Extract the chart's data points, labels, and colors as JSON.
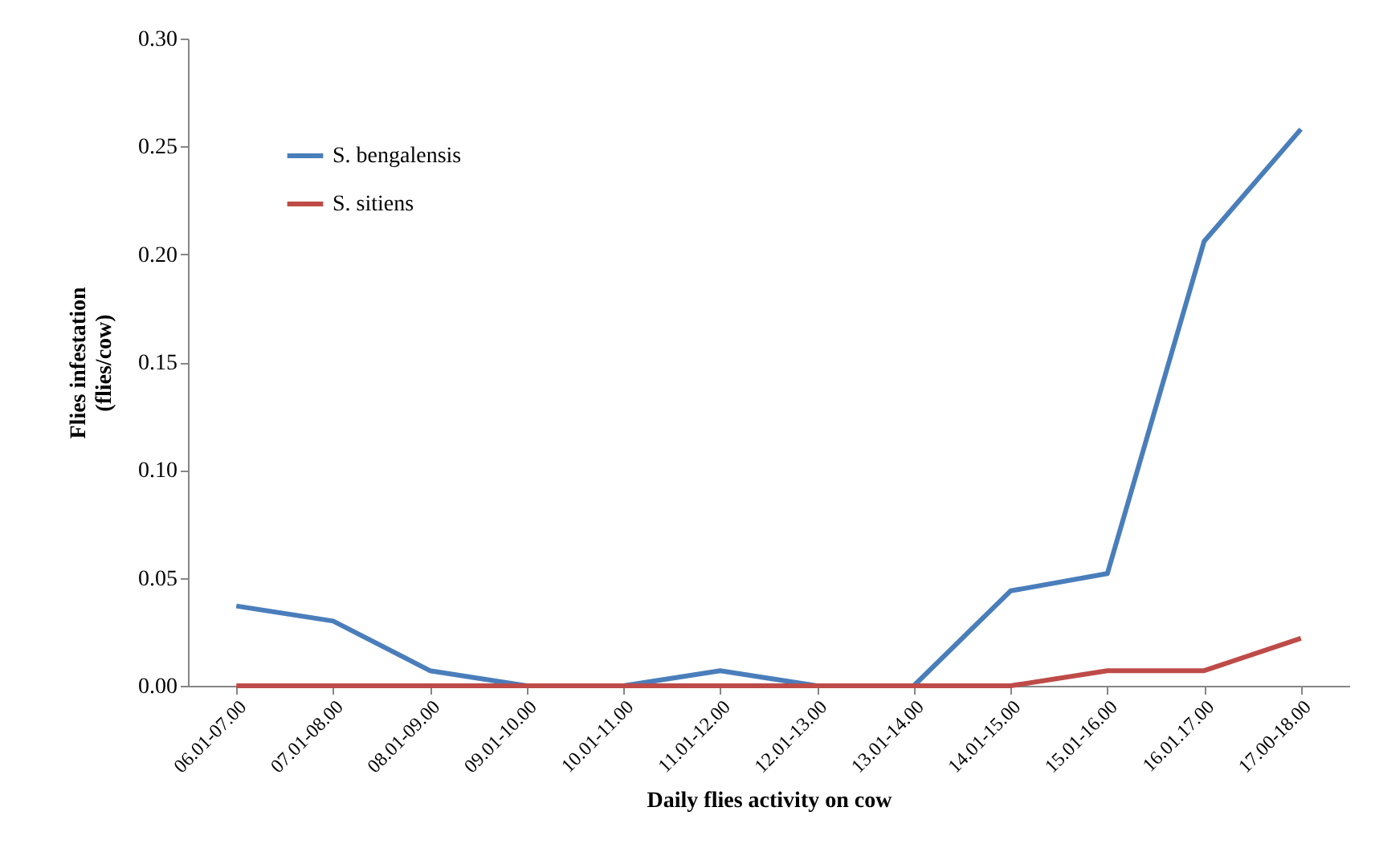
{
  "chart_data": {
    "type": "line",
    "xlabel": "Daily flies activity on cow",
    "ylabel": "Flies infestation\n(flies/cow)",
    "categories": [
      "06.01-07.00",
      "07.01-08.00",
      "08.01-09.00",
      "09.01-10.00",
      "10.01-11.00",
      "11.01-12.00",
      "12.01-13.00",
      "13.01-14.00",
      "14.01-15.00",
      "15.01-16.00",
      "16.01.17.00",
      "17.00-18.00"
    ],
    "series": [
      {
        "name": "S. bengalensis",
        "color": "#4a7ebb",
        "values": [
          0.037,
          0.03,
          0.007,
          0,
          0,
          0.007,
          0,
          0,
          0.044,
          0.052,
          0.206,
          0.258
        ]
      },
      {
        "name": "S. sitiens",
        "color": "#be4b48",
        "values": [
          0,
          0,
          0,
          0,
          0,
          0,
          0,
          0,
          0,
          0.007,
          0.007,
          0.022
        ]
      }
    ],
    "ylim": [
      0,
      0.3
    ],
    "yticks": [
      {
        "value": 0,
        "label": "0.00"
      },
      {
        "value": 0.05,
        "label": "0.05"
      },
      {
        "value": 0.1,
        "label": "0.10"
      },
      {
        "value": 0.15,
        "label": "0.15"
      },
      {
        "value": 0.2,
        "label": "0.20"
      },
      {
        "value": 0.25,
        "label": "0.25"
      },
      {
        "value": 0.3,
        "label": "0.30"
      }
    ],
    "grid": false,
    "legend": "top left",
    "marker": "none",
    "line_style": "solid"
  }
}
